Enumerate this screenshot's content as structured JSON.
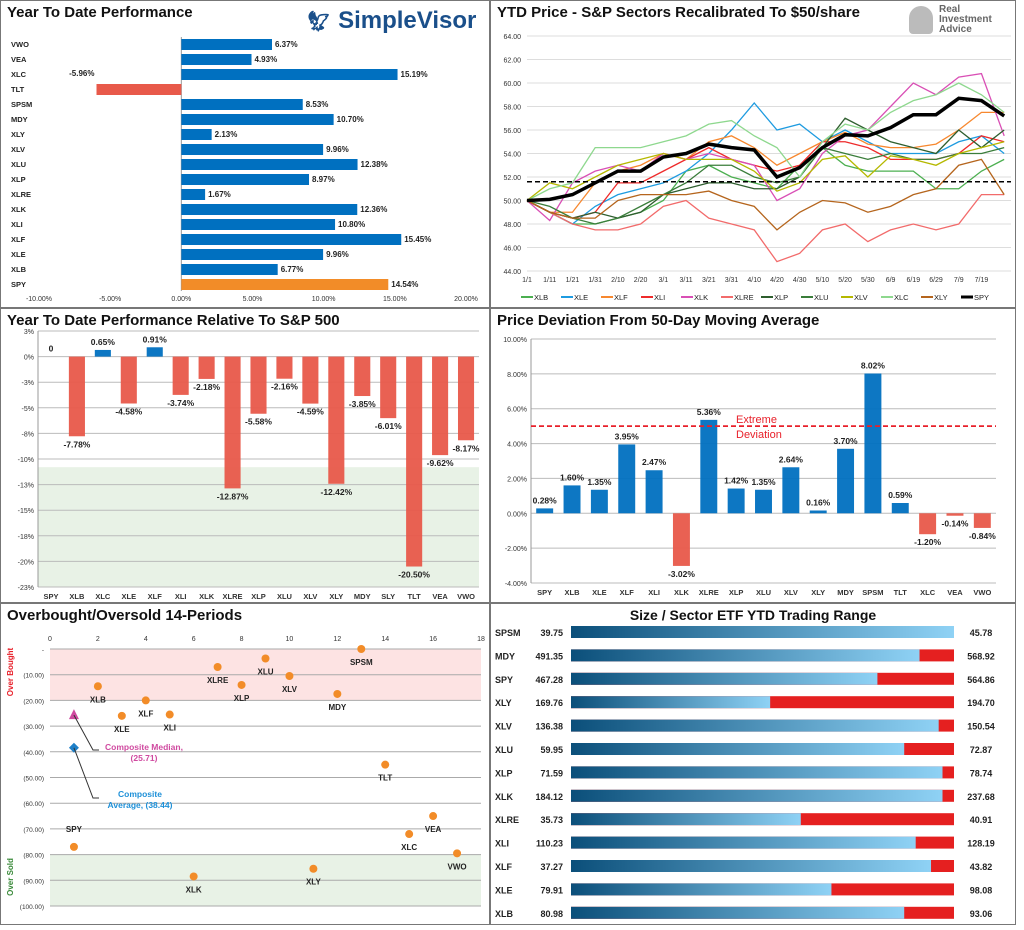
{
  "colors": {
    "blue": "#0070c0",
    "red": "#e8594a",
    "orange": "#f28c28",
    "spy_black": "#000000",
    "overbought_band": "#fde3e3",
    "oversold_band": "#e8f2e6"
  },
  "logos": {
    "simplevisor": "SimpleVisor",
    "ria": "Real Investment Advice"
  },
  "chart_data": [
    {
      "type": "bar",
      "orientation": "horizontal",
      "title": "Year To Date Performance",
      "categories": [
        "VWO",
        "VEA",
        "XLC",
        "TLT",
        "SPSM",
        "MDY",
        "XLY",
        "XLV",
        "XLU",
        "XLP",
        "XLRE",
        "XLK",
        "XLI",
        "XLF",
        "XLE",
        "XLB",
        "SPY"
      ],
      "values": [
        6.37,
        4.93,
        15.19,
        -5.96,
        8.53,
        10.7,
        2.13,
        9.96,
        12.38,
        8.97,
        1.67,
        12.36,
        10.8,
        15.45,
        9.96,
        6.77,
        14.54
      ],
      "labels": [
        "6.37%",
        "4.93%",
        "15.19%",
        "-5.96%",
        "8.53%",
        "10.70%",
        "2.13%",
        "9.96%",
        "12.38%",
        "8.97%",
        "1.67%",
        "12.36%",
        "10.80%",
        "15.45%",
        "9.96%",
        "6.77%",
        "14.54%"
      ],
      "xlim": [
        -10,
        20
      ],
      "xticks": [
        "-10.00%",
        "-5.00%",
        "0.00%",
        "5.00%",
        "10.00%",
        "15.00%",
        "20.00%"
      ],
      "highlight": "SPY"
    },
    {
      "type": "line",
      "title": "YTD Price - S&P Sectors Recalibrated To $50/share",
      "x": [
        "1/1",
        "1/11",
        "1/21",
        "1/31",
        "2/10",
        "2/20",
        "3/1",
        "3/11",
        "3/21",
        "3/31",
        "4/10",
        "4/20",
        "4/30",
        "5/10",
        "5/20",
        "5/30",
        "6/9",
        "6/19",
        "6/29",
        "7/9",
        "7/19",
        ""
      ],
      "xticks": [
        "1/1",
        "1/11",
        "1/21",
        "1/31",
        "2/10",
        "2/20",
        "3/1",
        "3/11",
        "3/21",
        "3/31",
        "4/10",
        "4/20",
        "4/30",
        "5/10",
        "5/20",
        "5/30",
        "6/9",
        "6/19",
        "6/29",
        "7/9",
        "7/19"
      ],
      "ylim": [
        44,
        64
      ],
      "yticks": [
        "44.00",
        "46.00",
        "48.00",
        "50.00",
        "52.00",
        "54.00",
        "56.00",
        "58.00",
        "60.00",
        "62.00",
        "64.00"
      ],
      "reference_line": 51.6,
      "legend": "bottom",
      "series": [
        {
          "name": "XLB",
          "color": "#4caf50",
          "values": [
            50,
            49,
            48,
            48,
            48.5,
            49,
            50,
            52.5,
            53,
            52,
            51.5,
            51,
            53,
            54.5,
            53,
            52.5,
            52.5,
            52.5,
            51,
            51,
            52.5,
            53.5
          ]
        },
        {
          "name": "XLE",
          "color": "#1e9be0",
          "values": [
            50,
            49,
            48,
            49.5,
            50.5,
            51,
            51.5,
            52.5,
            54,
            56,
            58.3,
            56,
            56.5,
            55,
            56,
            55,
            54,
            54,
            54,
            55,
            55.5,
            54
          ]
        },
        {
          "name": "XLF",
          "color": "#f7882f",
          "values": [
            50,
            49,
            49,
            51.5,
            52.5,
            53,
            54,
            53.5,
            55,
            55.5,
            54.5,
            53,
            54,
            55,
            55.8,
            54.8,
            54.5,
            54.5,
            54.8,
            56,
            57.5,
            57.5
          ]
        },
        {
          "name": "XLI",
          "color": "#ee2b2b",
          "values": [
            50,
            49,
            48.5,
            49,
            51.5,
            51.5,
            52.5,
            53.5,
            54.5,
            53.5,
            53,
            52.5,
            53,
            55,
            55,
            54.5,
            53.5,
            53.5,
            53.5,
            54,
            55.5,
            55
          ]
        },
        {
          "name": "XLK",
          "color": "#d94fb5",
          "values": [
            50,
            48.3,
            51.5,
            52.5,
            53,
            52.5,
            54,
            53.5,
            54,
            53.5,
            53,
            50,
            51,
            54,
            55.5,
            56,
            58,
            60,
            59,
            60.5,
            60.8,
            55.5
          ]
        },
        {
          "name": "XLRE",
          "color": "#f26b6b",
          "values": [
            50,
            49,
            48,
            47.5,
            47.5,
            48,
            49.5,
            50,
            48.5,
            48,
            47.5,
            44.8,
            45.5,
            47.5,
            48,
            46.5,
            47.5,
            48,
            47.5,
            48,
            50.5,
            50.5
          ]
        },
        {
          "name": "XLP",
          "color": "#2e5e2e",
          "values": [
            50,
            49,
            48.5,
            49,
            48.5,
            49,
            50.5,
            51,
            51.5,
            51.5,
            51,
            51,
            52,
            54.5,
            57,
            56,
            55,
            54.5,
            54,
            56,
            54.5,
            56
          ]
        },
        {
          "name": "XLU",
          "color": "#3a7d3a",
          "values": [
            50,
            49.5,
            48.5,
            48,
            48.5,
            49.5,
            50.5,
            51.5,
            53,
            53,
            52,
            51.5,
            52,
            54.5,
            54,
            53.5,
            54,
            53.5,
            53.5,
            54,
            54,
            54.5
          ]
        },
        {
          "name": "XLV",
          "color": "#b5b800",
          "values": [
            50,
            51.5,
            51,
            52,
            53,
            53.5,
            54,
            53.5,
            53.5,
            53.5,
            52.5,
            50.8,
            51.5,
            53.5,
            53.8,
            52,
            53.8,
            53.5,
            53,
            54,
            54.5,
            55
          ]
        },
        {
          "name": "XLC",
          "color": "#8ed88e",
          "values": [
            50,
            51,
            51.5,
            54.5,
            54.5,
            54.5,
            55,
            55.5,
            56.5,
            56.8,
            55.5,
            54.5,
            52,
            55,
            56.5,
            56,
            57.5,
            58.5,
            59,
            60,
            59,
            57.5
          ]
        },
        {
          "name": "XLY",
          "color": "#b5651d",
          "values": [
            50,
            49,
            48.5,
            48.5,
            50,
            50.5,
            50.5,
            50.5,
            50.8,
            50,
            49.5,
            47.5,
            49,
            50,
            49.8,
            49,
            49.5,
            50.5,
            51,
            53,
            53.5,
            50.5
          ]
        },
        {
          "name": "SPY",
          "color": "#000000",
          "values": [
            50,
            50.1,
            50.5,
            51.5,
            52.5,
            52.5,
            53.7,
            54,
            54.8,
            54.5,
            54.3,
            52,
            52.8,
            54.5,
            55.6,
            55.5,
            56.2,
            57.3,
            57.3,
            58.7,
            58.5,
            57.2
          ]
        }
      ]
    },
    {
      "type": "bar",
      "title": "Year To Date Performance Relative To S&P 500",
      "categories": [
        "SPY",
        "XLB",
        "XLC",
        "XLE",
        "XLF",
        "XLI",
        "XLK",
        "XLRE",
        "XLP",
        "XLU",
        "XLV",
        "XLY",
        "MDY",
        "SLY",
        "TLT",
        "VEA",
        "VWO"
      ],
      "values": [
        0,
        -7.78,
        0.65,
        -4.58,
        0.91,
        -3.74,
        -2.18,
        -12.87,
        -5.58,
        -2.16,
        -4.59,
        -12.42,
        -3.85,
        -6.01,
        -20.5,
        -9.62,
        -8.17
      ],
      "labels": [
        "0",
        "-7.78%",
        "0.65%",
        "-4.58%",
        "0.91%",
        "-3.74%",
        "-2.18%",
        "-12.87%",
        "-5.58%",
        "-2.16%",
        "-4.59%",
        "-12.42%",
        "-3.85%",
        "-6.01%",
        "-20.50%",
        "-9.62%",
        "-8.17%"
      ],
      "ylim": [
        -22.5,
        2.5
      ],
      "yticks": [
        "3%",
        "0%",
        "-3%",
        "-5%",
        "-8%",
        "-10%",
        "-13%",
        "-15%",
        "-18%",
        "-20%",
        "-23%"
      ],
      "shaded_below": -10.8
    },
    {
      "type": "bar",
      "title": "Price Deviation From 50-Day Moving Average",
      "categories": [
        "SPY",
        "XLB",
        "XLE",
        "XLF",
        "XLI",
        "XLK",
        "XLRE",
        "XLP",
        "XLU",
        "XLV",
        "XLY",
        "MDY",
        "SPSM",
        "TLT",
        "XLC",
        "VEA",
        "VWO"
      ],
      "values": [
        0.28,
        1.6,
        1.35,
        3.95,
        2.47,
        -3.02,
        5.36,
        1.42,
        1.35,
        2.64,
        0.16,
        3.7,
        8.02,
        0.59,
        -1.2,
        -0.14,
        -0.84
      ],
      "labels": [
        "0.28%",
        "1.60%",
        "1.35%",
        "3.95%",
        "2.47%",
        "-3.02%",
        "5.36%",
        "1.42%",
        "1.35%",
        "2.64%",
        "0.16%",
        "3.70%",
        "8.02%",
        "0.59%",
        "-1.20%",
        "-0.14%",
        "-0.84%"
      ],
      "ylim": [
        -4,
        10
      ],
      "yticks": [
        "-4.00%",
        "-2.00%",
        "0.00%",
        "2.00%",
        "4.00%",
        "6.00%",
        "8.00%",
        "10.00%"
      ],
      "threshold": 5,
      "threshold_label_1": "Extreme",
      "threshold_label_2": "Deviation"
    },
    {
      "type": "scatter",
      "title": "Overbought/Oversold 14-Periods",
      "xlim": [
        0,
        18
      ],
      "xticks": [
        "0",
        "2",
        "4",
        "6",
        "8",
        "10",
        "12",
        "14",
        "16",
        "18"
      ],
      "ylim": [
        -100,
        0
      ],
      "yticks": [
        "-",
        "(10.00)",
        "(20.00)",
        "(30.00)",
        "(40.00)",
        "(50.00)",
        "(60.00)",
        "(70.00)",
        "(80.00)",
        "(90.00)",
        "(100.00)"
      ],
      "band_top_label": "Over Bought",
      "band_bottom_label": "Over Sold",
      "points": [
        {
          "label": "SPY",
          "x": 1,
          "y": -77
        },
        {
          "label": "XLB",
          "x": 2,
          "y": -14.5
        },
        {
          "label": "XLE",
          "x": 3,
          "y": -26
        },
        {
          "label": "XLF",
          "x": 4,
          "y": -20
        },
        {
          "label": "XLI",
          "x": 5,
          "y": -25.5
        },
        {
          "label": "XLK",
          "x": 6,
          "y": -88.5
        },
        {
          "label": "XLRE",
          "x": 7,
          "y": -7
        },
        {
          "label": "XLP",
          "x": 8,
          "y": -14
        },
        {
          "label": "XLU",
          "x": 9,
          "y": -3.7
        },
        {
          "label": "XLV",
          "x": 10,
          "y": -10.5
        },
        {
          "label": "XLY",
          "x": 11,
          "y": -85.5
        },
        {
          "label": "MDY",
          "x": 12,
          "y": -17.5
        },
        {
          "label": "SPSM",
          "x": 13,
          "y": 0
        },
        {
          "label": "TLT",
          "x": 14,
          "y": -45
        },
        {
          "label": "XLC",
          "x": 15,
          "y": -72
        },
        {
          "label": "VEA",
          "x": 16,
          "y": -65
        },
        {
          "label": "VWO",
          "x": 17,
          "y": -79.5
        }
      ],
      "median": {
        "x": 1,
        "y": -25.71,
        "label1": "Composite Median,",
        "label2": "(25.71)"
      },
      "average": {
        "x": 1,
        "y": -38.44,
        "label1": "Composite",
        "label2": "Average,  (38.44)"
      }
    },
    {
      "type": "table",
      "title": "Size / Sector ETF YTD Trading Range",
      "rows": [
        {
          "ticker": "SPSM",
          "low": "39.75",
          "high": "45.78",
          "position": 1.0
        },
        {
          "ticker": "MDY",
          "low": "491.35",
          "high": "568.92",
          "position": 0.91
        },
        {
          "ticker": "SPY",
          "low": "467.28",
          "high": "564.86",
          "position": 0.8
        },
        {
          "ticker": "XLY",
          "low": "169.76",
          "high": "194.70",
          "position": 0.52
        },
        {
          "ticker": "XLV",
          "low": "136.38",
          "high": "150.54",
          "position": 0.96
        },
        {
          "ticker": "XLU",
          "low": "59.95",
          "high": "72.87",
          "position": 0.87
        },
        {
          "ticker": "XLP",
          "low": "71.59",
          "high": "78.74",
          "position": 0.97
        },
        {
          "ticker": "XLK",
          "low": "184.12",
          "high": "237.68",
          "position": 0.97
        },
        {
          "ticker": "XLRE",
          "low": "35.73",
          "high": "40.91",
          "position": 0.6
        },
        {
          "ticker": "XLI",
          "low": "110.23",
          "high": "128.19",
          "position": 0.9
        },
        {
          "ticker": "XLF",
          "low": "37.27",
          "high": "43.82",
          "position": 0.94
        },
        {
          "ticker": "XLE",
          "low": "79.91",
          "high": "98.08",
          "position": 0.68
        },
        {
          "ticker": "XLB",
          "low": "80.98",
          "high": "93.06",
          "position": 0.87
        }
      ]
    }
  ]
}
